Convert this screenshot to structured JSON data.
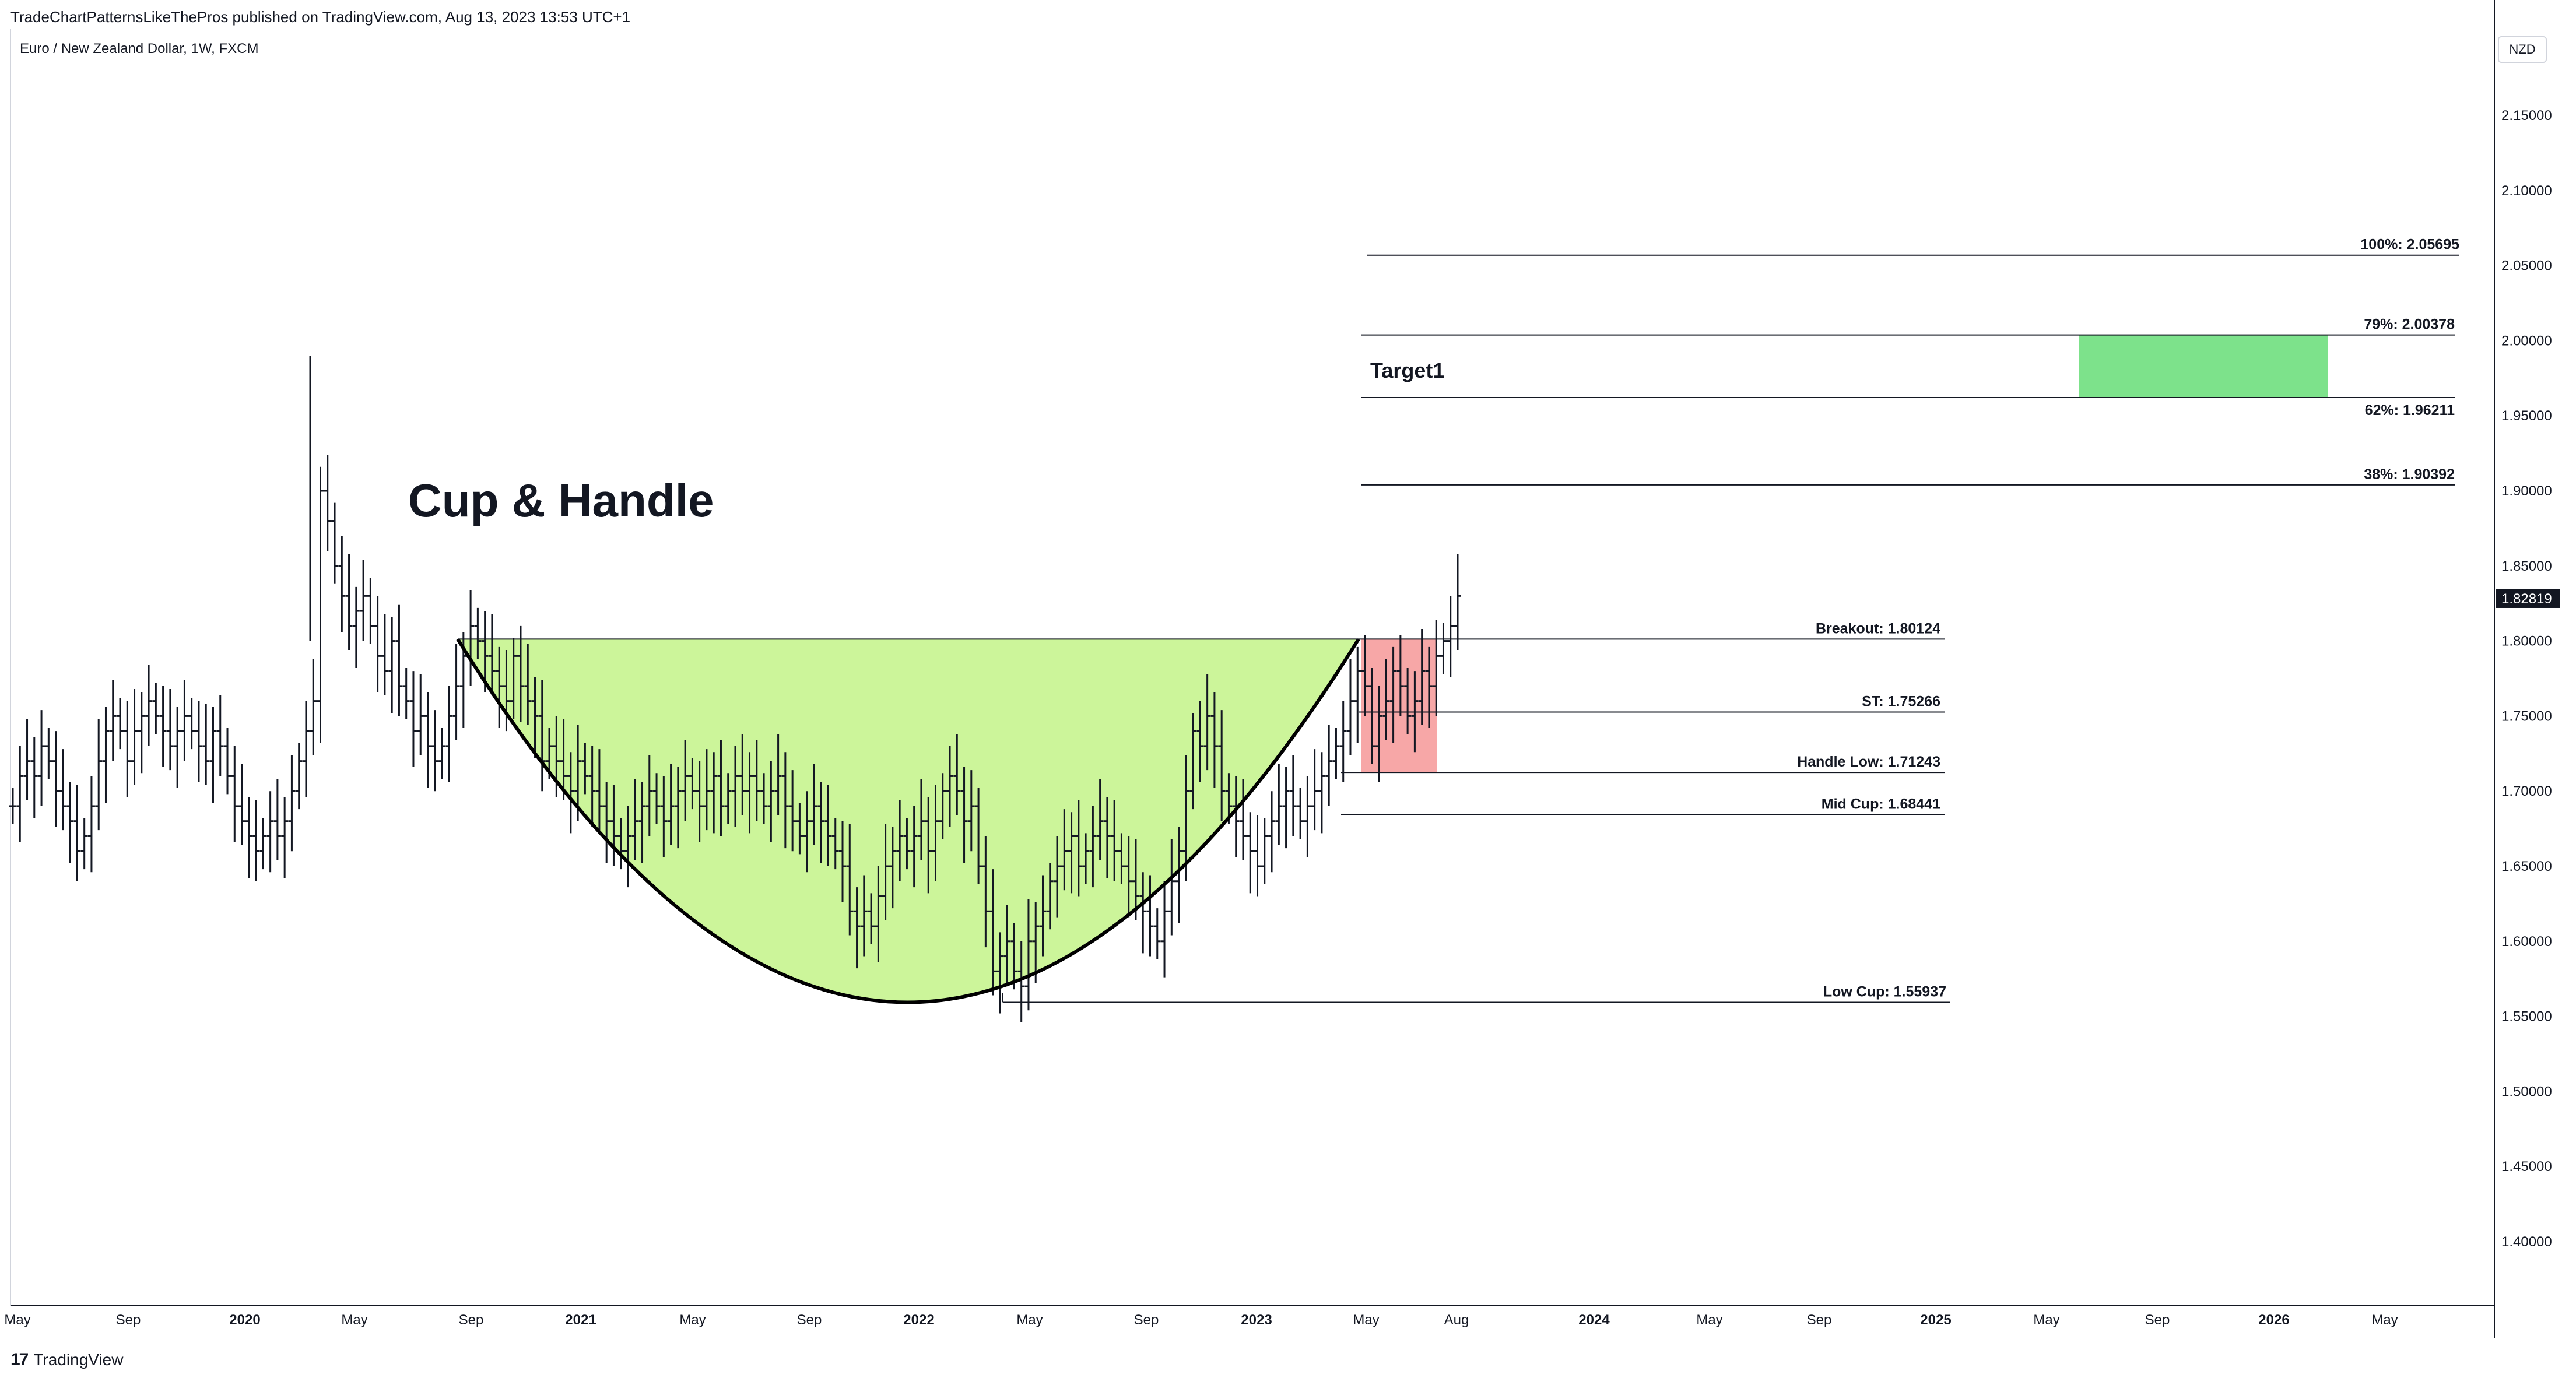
{
  "header": {
    "publisher_line": "TradeChartPatternsLikeThePros published on TradingView.com, Aug 13, 2023 13:53 UTC+1",
    "symbol_line": "Euro / New Zealand Dollar, 1W, FXCM",
    "currency_badge": "NZD"
  },
  "footer": {
    "logo": "17",
    "brand": "TradingView"
  },
  "colors": {
    "cup_fill": "#ccf59a",
    "handle_fill": "#f7a7a7",
    "target_fill": "#66dd77",
    "bars": "#131722",
    "price_tag_bg": "#131722"
  },
  "chart_data": {
    "type": "bar",
    "title": "Cup & Handle",
    "instrument": "Euro / New Zealand Dollar",
    "interval": "1W",
    "x_axis_ticks": [
      "May",
      "Sep",
      "2020",
      "May",
      "Sep",
      "2021",
      "May",
      "Sep",
      "2022",
      "May",
      "Sep",
      "2023",
      "May",
      "Aug",
      "2024",
      "May",
      "Sep",
      "2025",
      "May",
      "Sep",
      "2026",
      "May"
    ],
    "y_axis_ticks": [
      "2.15000",
      "2.10000",
      "2.05000",
      "2.00000",
      "1.95000",
      "1.90000",
      "1.85000",
      "1.80000",
      "1.75000",
      "1.70000",
      "1.65000",
      "1.60000",
      "1.55000",
      "1.50000",
      "1.45000",
      "1.40000"
    ],
    "ylim": [
      1.36,
      2.19
    ],
    "last_price": "1.82819",
    "levels": [
      {
        "label": "100%: 2.05695",
        "value": 2.05695
      },
      {
        "label": "79%: 2.00378",
        "value": 2.00378
      },
      {
        "label": "62%: 1.96211",
        "value": 1.96211
      },
      {
        "label": "38%: 1.90392",
        "value": 1.90392
      },
      {
        "label": "Breakout: 1.80124",
        "value": 1.80124
      },
      {
        "label": "ST: 1.75266",
        "value": 1.75266
      },
      {
        "label": "Handle Low: 1.71243",
        "value": 1.71243
      },
      {
        "label": "Mid Cup: 1.68441",
        "value": 1.68441
      },
      {
        "label": "Low Cup: 1.55937",
        "value": 1.55937
      }
    ],
    "target_label": "Target1",
    "target_zone": [
      1.96211,
      2.00378
    ],
    "handle_zone": [
      1.71243,
      1.80124
    ],
    "series": [
      {
        "values": [
          1.69,
          1.71,
          1.72,
          1.71,
          1.73,
          1.72,
          1.7,
          1.69,
          1.68,
          1.66,
          1.67,
          1.69,
          1.72,
          1.74,
          1.75,
          1.74,
          1.72,
          1.74,
          1.75,
          1.76,
          1.75,
          1.74,
          1.73,
          1.74,
          1.75,
          1.74,
          1.73,
          1.72,
          1.74,
          1.73,
          1.71,
          1.69,
          1.68,
          1.67,
          1.66,
          1.67,
          1.68,
          1.67,
          1.68,
          1.7,
          1.72,
          1.74,
          1.76,
          1.9,
          1.88,
          1.85,
          1.83,
          1.81,
          1.82,
          1.83,
          1.81,
          1.79,
          1.78,
          1.8,
          1.77,
          1.76,
          1.74,
          1.75,
          1.73,
          1.72,
          1.73,
          1.75,
          1.77,
          1.79,
          1.81,
          1.8,
          1.79,
          1.78,
          1.77,
          1.76,
          1.79,
          1.77,
          1.76,
          1.75,
          1.72,
          1.73,
          1.72,
          1.71,
          1.7,
          1.72,
          1.71,
          1.7,
          1.69,
          1.68,
          1.67,
          1.66,
          1.67,
          1.68,
          1.69,
          1.7,
          1.69,
          1.68,
          1.69,
          1.7,
          1.71,
          1.7,
          1.69,
          1.7,
          1.71,
          1.69,
          1.7,
          1.71,
          1.7,
          1.71,
          1.7,
          1.69,
          1.7,
          1.71,
          1.69,
          1.68,
          1.67,
          1.68,
          1.69,
          1.68,
          1.67,
          1.66,
          1.65,
          1.62,
          1.61,
          1.62,
          1.61,
          1.63,
          1.65,
          1.66,
          1.67,
          1.66,
          1.67,
          1.68,
          1.66,
          1.68,
          1.7,
          1.71,
          1.7,
          1.68,
          1.69,
          1.65,
          1.62,
          1.58,
          1.59,
          1.6,
          1.58,
          1.57,
          1.6,
          1.61,
          1.62,
          1.64,
          1.65,
          1.66,
          1.67,
          1.65,
          1.66,
          1.67,
          1.68,
          1.67,
          1.66,
          1.65,
          1.64,
          1.63,
          1.62,
          1.61,
          1.6,
          1.62,
          1.64,
          1.66,
          1.7,
          1.74,
          1.73,
          1.75,
          1.73,
          1.7,
          1.69,
          1.68,
          1.67,
          1.66,
          1.65,
          1.67,
          1.68,
          1.69,
          1.7,
          1.69,
          1.68,
          1.69,
          1.7,
          1.71,
          1.72,
          1.73,
          1.74,
          1.76,
          1.78,
          1.77,
          1.73,
          1.75,
          1.76,
          1.78,
          1.77,
          1.75,
          1.76,
          1.78,
          1.77,
          1.79,
          1.8,
          1.81,
          1.83
        ]
      }
    ]
  }
}
